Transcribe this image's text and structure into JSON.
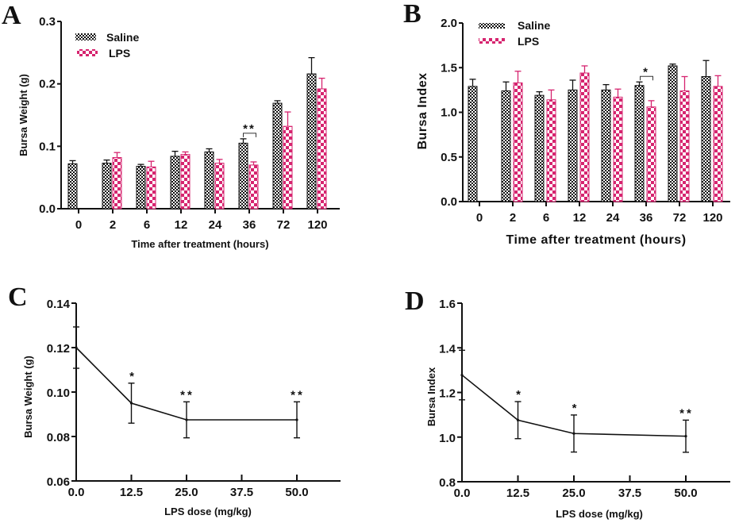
{
  "colors": {
    "saline": "#111111",
    "lps": "#d6246f",
    "axis": "#111111"
  },
  "chart_data": [
    {
      "panel": "A",
      "type": "bar",
      "title": "",
      "xlabel": "Time after treatment (hours)",
      "ylabel": "Bursa Weight (g)",
      "ylim": [
        0,
        0.3
      ],
      "yticks": [
        "0.0",
        "0.1",
        "0.2",
        "0.3"
      ],
      "categories": [
        "0",
        "2",
        "6",
        "12",
        "24",
        "36",
        "72",
        "120"
      ],
      "legend": {
        "position": "top-left",
        "entries": [
          "Saline",
          "LPS"
        ]
      },
      "series": [
        {
          "name": "Saline",
          "values": [
            0.072,
            0.073,
            0.068,
            0.084,
            0.091,
            0.105,
            0.169,
            0.216
          ],
          "errors": [
            0.005,
            0.005,
            0.003,
            0.008,
            0.005,
            0.007,
            0.004,
            0.026
          ]
        },
        {
          "name": "LPS",
          "values": [
            null,
            0.082,
            0.067,
            0.087,
            0.073,
            0.07,
            0.132,
            0.192
          ],
          "errors": [
            null,
            0.008,
            0.009,
            0.004,
            0.006,
            0.005,
            0.023,
            0.017
          ]
        }
      ],
      "annotations": [
        {
          "category": "36",
          "text": "**"
        }
      ]
    },
    {
      "panel": "B",
      "type": "bar",
      "title": "",
      "xlabel": "Time after treatment (hours)",
      "ylabel": "Bursa Index",
      "ylim": [
        0,
        2.0
      ],
      "yticks": [
        "0.0",
        "0.5",
        "1.0",
        "1.5",
        "2.0"
      ],
      "categories": [
        "0",
        "2",
        "6",
        "12",
        "24",
        "36",
        "72",
        "120"
      ],
      "legend": {
        "position": "top-left",
        "entries": [
          "Saline",
          "LPS"
        ]
      },
      "series": [
        {
          "name": "Saline",
          "values": [
            1.29,
            1.24,
            1.19,
            1.25,
            1.25,
            1.3,
            1.52,
            1.4
          ],
          "errors": [
            0.08,
            0.1,
            0.04,
            0.11,
            0.06,
            0.04,
            0.02,
            0.18
          ]
        },
        {
          "name": "LPS",
          "values": [
            null,
            1.33,
            1.14,
            1.44,
            1.17,
            1.06,
            1.24,
            1.29
          ],
          "errors": [
            null,
            0.13,
            0.11,
            0.08,
            0.09,
            0.07,
            0.16,
            0.12
          ]
        }
      ],
      "annotations": [
        {
          "category": "36",
          "text": "*"
        }
      ]
    },
    {
      "panel": "C",
      "type": "line",
      "title": "",
      "xlabel": "LPS dose (mg/kg)",
      "ylabel": "Bursa Weight (g)",
      "xlim": [
        0,
        60
      ],
      "ylim": [
        0.06,
        0.14
      ],
      "xticks": [
        "0.0",
        "12.5",
        "25.0",
        "37.5",
        "50.0"
      ],
      "yticks": [
        "0.06",
        "0.08",
        "0.10",
        "0.12",
        "0.14"
      ],
      "x": [
        0,
        12.5,
        25,
        50
      ],
      "series": [
        {
          "name": "Bursa Weight",
          "values": [
            0.12,
            0.095,
            0.0875,
            0.0875
          ],
          "errors": [
            0.0093,
            0.009,
            0.0081,
            0.0081
          ]
        }
      ],
      "annotations": [
        {
          "x": 12.5,
          "text": "*"
        },
        {
          "x": 25,
          "text": "**"
        },
        {
          "x": 50,
          "text": "**"
        }
      ]
    },
    {
      "panel": "D",
      "type": "line",
      "title": "",
      "xlabel": "LPS dose (mg/kg)",
      "ylabel": "Bursa Index",
      "xlim": [
        0,
        60
      ],
      "ylim": [
        0.8,
        1.6
      ],
      "xticks": [
        "0.0",
        "12.5",
        "25.0",
        "37.5",
        "50.0"
      ],
      "yticks": [
        "0.8",
        "1.0",
        "1.2",
        "1.4",
        "1.6"
      ],
      "x": [
        0,
        12.5,
        25,
        50
      ],
      "series": [
        {
          "name": "Bursa Index",
          "values": [
            1.278,
            1.076,
            1.016,
            1.004
          ],
          "errors": [
            0.111,
            0.083,
            0.083,
            0.072
          ]
        }
      ],
      "annotations": [
        {
          "x": 12.5,
          "text": "*"
        },
        {
          "x": 25,
          "text": "*"
        },
        {
          "x": 50,
          "text": "**"
        }
      ]
    }
  ]
}
